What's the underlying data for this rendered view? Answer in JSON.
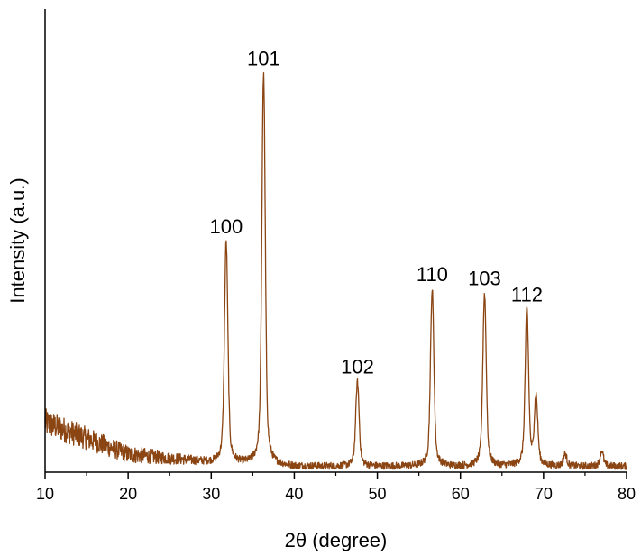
{
  "chart_data": {
    "type": "line",
    "title": "",
    "xlabel": "2θ (degree)",
    "ylabel": "Intensity (a.u.)",
    "xlim": [
      10,
      80
    ],
    "ylim": [
      0,
      100
    ],
    "x_ticks": [
      10,
      20,
      30,
      40,
      50,
      60,
      70,
      80
    ],
    "x_tick_labels": [
      "10",
      "20",
      "30",
      "40",
      "50",
      "60",
      "70",
      "80"
    ],
    "y_ticks_shown": false,
    "grid": false,
    "legend": "none",
    "line_color": "#8B4513",
    "series": [
      {
        "peaks": [
          {
            "hkl": "100",
            "x": 31.8,
            "y": 57
          },
          {
            "hkl": "101",
            "x": 36.3,
            "y": 99
          },
          {
            "hkl": "102",
            "x": 47.6,
            "y": 22
          },
          {
            "hkl": "110",
            "x": 56.6,
            "y": 45
          },
          {
            "hkl": "103",
            "x": 62.9,
            "y": 44
          },
          {
            "hkl": "112",
            "x": 68.0,
            "y": 40
          },
          {
            "hkl": "",
            "x": 69.1,
            "y": 18
          },
          {
            "hkl": "",
            "x": 72.6,
            "y": 4
          },
          {
            "hkl": "",
            "x": 77.0,
            "y": 5
          }
        ],
        "baseline": [
          {
            "x": 10,
            "y": 12
          },
          {
            "x": 15,
            "y": 8
          },
          {
            "x": 20,
            "y": 4
          },
          {
            "x": 30,
            "y": 2
          },
          {
            "x": 40,
            "y": 1
          },
          {
            "x": 60,
            "y": 1
          },
          {
            "x": 80,
            "y": 1
          }
        ]
      }
    ],
    "annotations": [
      {
        "text": "100",
        "x": 31.8,
        "y": 57
      },
      {
        "text": "101",
        "x": 36.3,
        "y": 99
      },
      {
        "text": "102",
        "x": 47.6,
        "y": 22
      },
      {
        "text": "110",
        "x": 56.6,
        "y": 45
      },
      {
        "text": "103",
        "x": 62.9,
        "y": 44
      },
      {
        "text": "112",
        "x": 68.0,
        "y": 40
      }
    ]
  }
}
